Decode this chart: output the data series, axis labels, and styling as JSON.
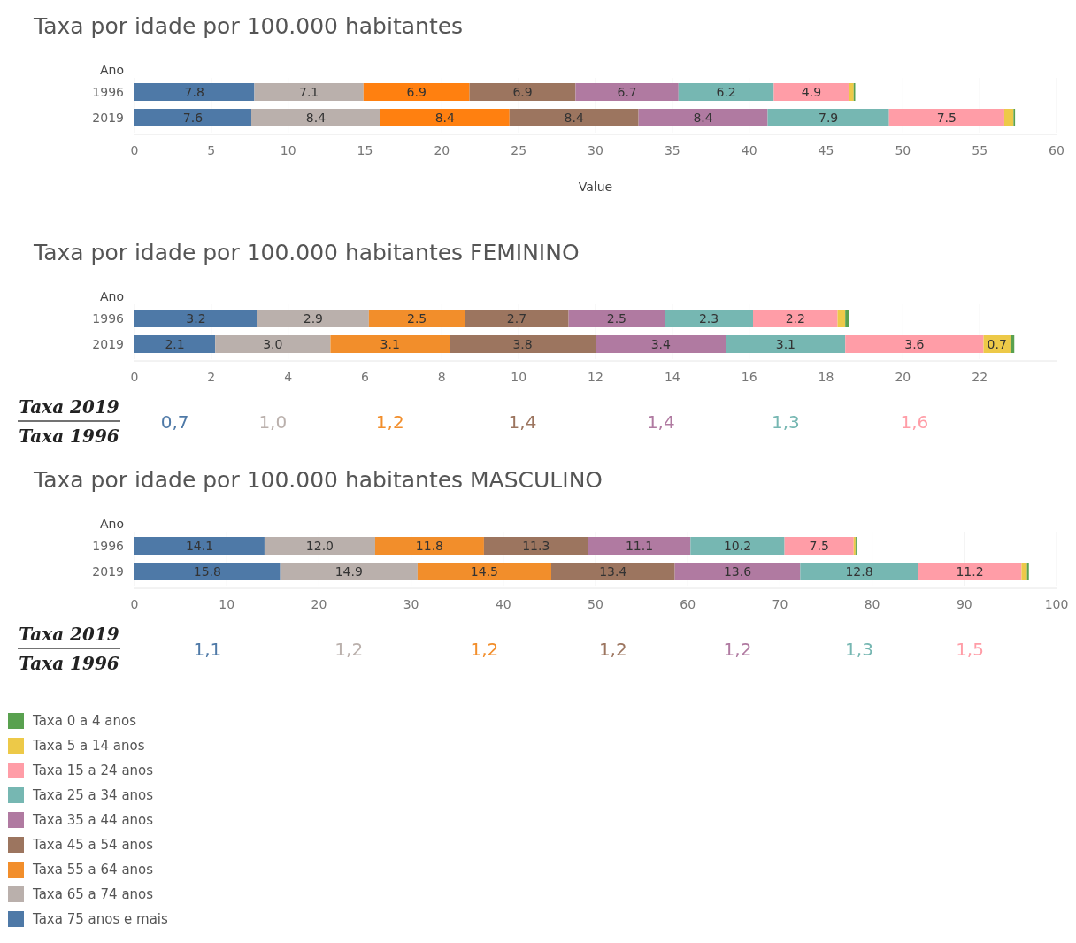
{
  "chart_data": [
    {
      "type": "bar",
      "orientation": "horizontal",
      "stacked": true,
      "title": "Taxa por idade por 100.000 habitantes",
      "ylabel": "Ano",
      "xlabel": "Value",
      "categories": [
        "1996",
        "2019"
      ],
      "xlim": [
        0,
        60
      ],
      "xticks": [
        0,
        5,
        10,
        15,
        20,
        25,
        30,
        35,
        40,
        45,
        50,
        55,
        60
      ],
      "grid": "x",
      "legend": false,
      "series": [
        {
          "color": "#4e79a7",
          "values": [
            7.8,
            7.6
          ],
          "value_labels": [
            "7.8",
            "7.6"
          ]
        },
        {
          "color": "#bab0ac",
          "values": [
            7.1,
            8.4
          ],
          "value_labels": [
            "7.1",
            "8.4"
          ]
        },
        {
          "color": "#ff8010",
          "values": [
            6.9,
            8.4
          ],
          "value_labels": [
            "6.9",
            "8.4"
          ]
        },
        {
          "color": "#9c755f",
          "values": [
            6.9,
            8.4
          ],
          "value_labels": [
            "6.9",
            "8.4"
          ]
        },
        {
          "color": "#b07aa1",
          "values": [
            6.7,
            8.4
          ],
          "value_labels": [
            "6.7",
            "8.4"
          ]
        },
        {
          "color": "#76b7b2",
          "values": [
            6.2,
            7.9
          ],
          "value_labels": [
            "6.2",
            "7.9"
          ]
        },
        {
          "color": "#ff9da7",
          "values": [
            4.9,
            7.5
          ],
          "value_labels": [
            "4.9",
            "7.5"
          ]
        },
        {
          "color": "#edc948",
          "values": [
            0.3,
            0.6
          ],
          "value_labels": [
            null,
            null
          ]
        },
        {
          "color": "#59a14f",
          "values": [
            0.1,
            0.1
          ],
          "value_labels": [
            null,
            null
          ]
        }
      ]
    },
    {
      "type": "bar",
      "orientation": "horizontal",
      "stacked": true,
      "title": "Taxa por idade por 100.000 habitantes FEMININO",
      "ylabel": "Ano",
      "categories": [
        "1996",
        "2019"
      ],
      "xlim": [
        0,
        24
      ],
      "xticks": [
        0,
        2,
        4,
        6,
        8,
        10,
        12,
        14,
        16,
        18,
        20,
        22
      ],
      "grid": "x",
      "legend": false,
      "annotations": [
        "Taxa 2019",
        "Taxa 1996",
        "0,7",
        "1,0",
        "1,2",
        "1,4",
        "1,4",
        "1,3",
        "1,6"
      ],
      "series": [
        {
          "color": "#4e79a7",
          "values": [
            3.2,
            2.1
          ],
          "value_labels": [
            "3.2",
            "2.1"
          ]
        },
        {
          "color": "#bab0ac",
          "values": [
            2.9,
            3.0
          ],
          "value_labels": [
            "2.9",
            "3.0"
          ]
        },
        {
          "color": "#f28e2b",
          "values": [
            2.5,
            3.1
          ],
          "value_labels": [
            "2.5",
            "3.1"
          ]
        },
        {
          "color": "#9c755f",
          "values": [
            2.7,
            3.8
          ],
          "value_labels": [
            "2.7",
            "3.8"
          ]
        },
        {
          "color": "#b07aa1",
          "values": [
            2.5,
            3.4
          ],
          "value_labels": [
            "2.5",
            "3.4"
          ]
        },
        {
          "color": "#76b7b2",
          "values": [
            2.3,
            3.1
          ],
          "value_labels": [
            "2.3",
            "3.1"
          ]
        },
        {
          "color": "#ff9da7",
          "values": [
            2.2,
            3.6
          ],
          "value_labels": [
            "2.2",
            "3.6"
          ]
        },
        {
          "color": "#edc948",
          "values": [
            0.2,
            0.7
          ],
          "value_labels": [
            null,
            "0.7"
          ]
        },
        {
          "color": "#59a14f",
          "values": [
            0.1,
            0.1
          ],
          "value_labels": [
            null,
            null
          ]
        }
      ]
    },
    {
      "type": "bar",
      "orientation": "horizontal",
      "stacked": true,
      "title": "Taxa por idade por 100.000 habitantes MASCULINO",
      "ylabel": "Ano",
      "categories": [
        "1996",
        "2019"
      ],
      "xlim": [
        0,
        100
      ],
      "xticks": [
        0,
        10,
        20,
        30,
        40,
        50,
        60,
        70,
        80,
        90,
        100
      ],
      "grid": "x",
      "legend": "bottom left",
      "annotations": [
        "Taxa 2019",
        "Taxa 1996",
        "1,1",
        "1,2",
        "1,2",
        "1,2",
        "1,2",
        "1,3",
        "1,5"
      ],
      "series": [
        {
          "name": "Taxa 75 anos e mais",
          "color": "#4e79a7",
          "values": [
            14.1,
            15.8
          ],
          "value_labels": [
            "14.1",
            "15.8"
          ]
        },
        {
          "name": "Taxa 65 a 74 anos",
          "color": "#bab0ac",
          "values": [
            12.0,
            14.9
          ],
          "value_labels": [
            "12.0",
            "14.9"
          ]
        },
        {
          "name": "Taxa 55 a 64 anos",
          "color": "#f28e2b",
          "values": [
            11.8,
            14.5
          ],
          "value_labels": [
            "11.8",
            "14.5"
          ]
        },
        {
          "name": "Taxa 45 a 54 anos",
          "color": "#9c755f",
          "values": [
            11.3,
            13.4
          ],
          "value_labels": [
            "11.3",
            "13.4"
          ]
        },
        {
          "name": "Taxa 35 a 44 anos",
          "color": "#b07aa1",
          "values": [
            11.1,
            13.6
          ],
          "value_labels": [
            "11.1",
            "13.6"
          ]
        },
        {
          "name": "Taxa 25 a 34 anos",
          "color": "#76b7b2",
          "values": [
            10.2,
            12.8
          ],
          "value_labels": [
            "10.2",
            "12.8"
          ]
        },
        {
          "name": "Taxa 15 a 24 anos",
          "color": "#ff9da7",
          "values": [
            7.5,
            11.2
          ],
          "value_labels": [
            "7.5",
            "11.2"
          ]
        },
        {
          "name": "Taxa 5 a 14 anos",
          "color": "#edc948",
          "values": [
            0.2,
            0.6
          ],
          "value_labels": [
            null,
            null
          ]
        },
        {
          "name": "Taxa 0 a 4 anos",
          "color": "#59a14f",
          "values": [
            0.1,
            0.2
          ],
          "value_labels": [
            null,
            null
          ]
        }
      ]
    }
  ]
}
